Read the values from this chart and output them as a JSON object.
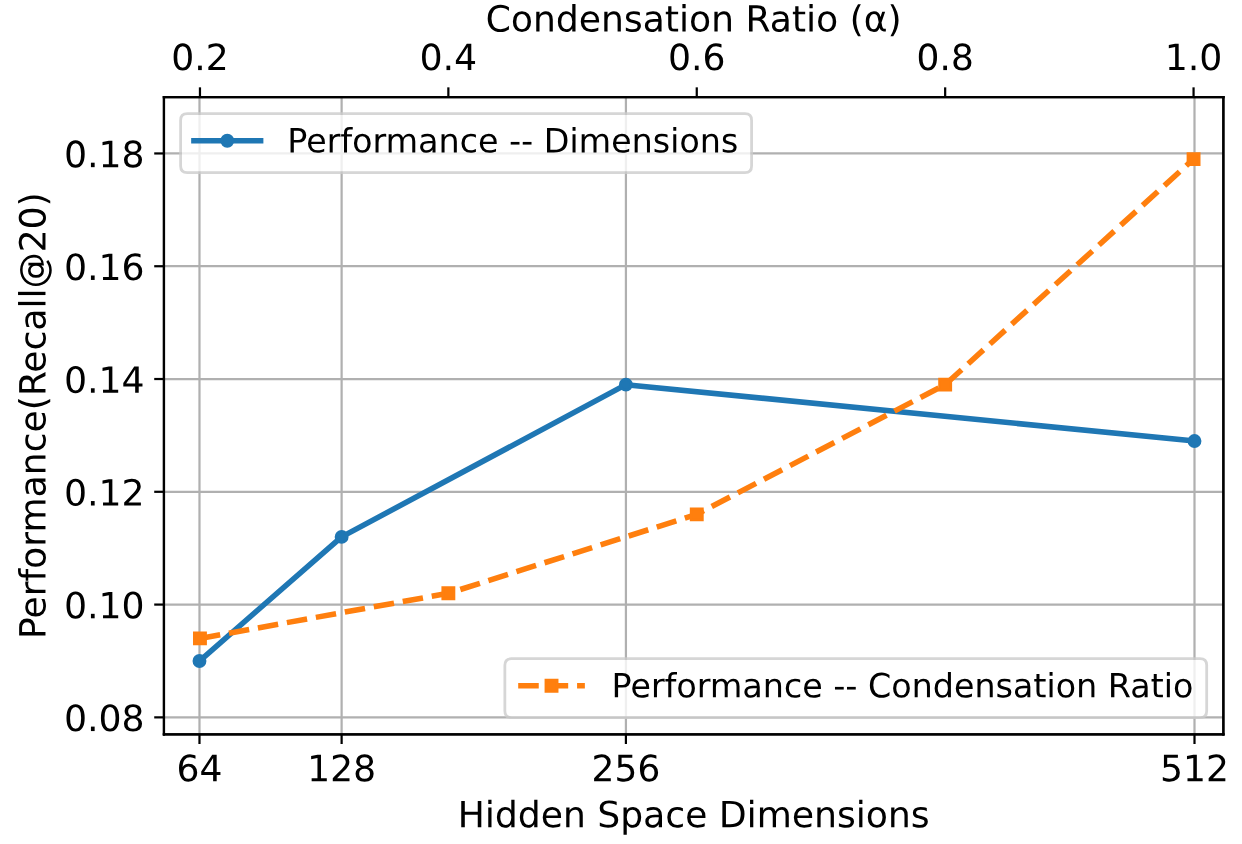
{
  "chart_data": {
    "type": "line",
    "xlabel": "Hidden Space Dimensions",
    "ylabel": "Performance(Recall@20)",
    "x2label": "Condensation Ratio (α)",
    "xlim": [
      48,
      525
    ],
    "xticks": [
      64,
      128,
      256,
      512
    ],
    "x2lim": [
      0.171,
      1.024
    ],
    "x2ticks": [
      {
        "value": 0.2,
        "label": "0.2"
      },
      {
        "value": 0.4,
        "label": "0.4"
      },
      {
        "value": 0.6,
        "label": "0.6"
      },
      {
        "value": 0.8,
        "label": "0.8"
      },
      {
        "value": 1.0,
        "label": "1.0"
      }
    ],
    "ylim": [
      0.077,
      0.19
    ],
    "yticks": [
      {
        "value": 0.08,
        "label": "0.08"
      },
      {
        "value": 0.1,
        "label": "0.10"
      },
      {
        "value": 0.12,
        "label": "0.12"
      },
      {
        "value": 0.14,
        "label": "0.14"
      },
      {
        "value": 0.16,
        "label": "0.16"
      },
      {
        "value": 0.18,
        "label": "0.18"
      }
    ],
    "grid": true,
    "legend": "top left",
    "series": [
      {
        "name": "Performance -- Dimensions",
        "color": "#1f77b4",
        "x": [
          64,
          128,
          256,
          512
        ],
        "values": [
          0.09,
          0.112,
          0.139,
          0.129
        ],
        "marker": "circle",
        "line_style": "solid"
      },
      {
        "name": "Performance -- Condensation Ratio",
        "color": "#ff7f0e",
        "axis": "x2",
        "x": [
          0.2,
          0.4,
          0.6,
          0.8,
          1.0
        ],
        "values": [
          0.094,
          0.102,
          0.116,
          0.139,
          0.179
        ],
        "marker": "square",
        "line_style": "dashed"
      }
    ]
  }
}
